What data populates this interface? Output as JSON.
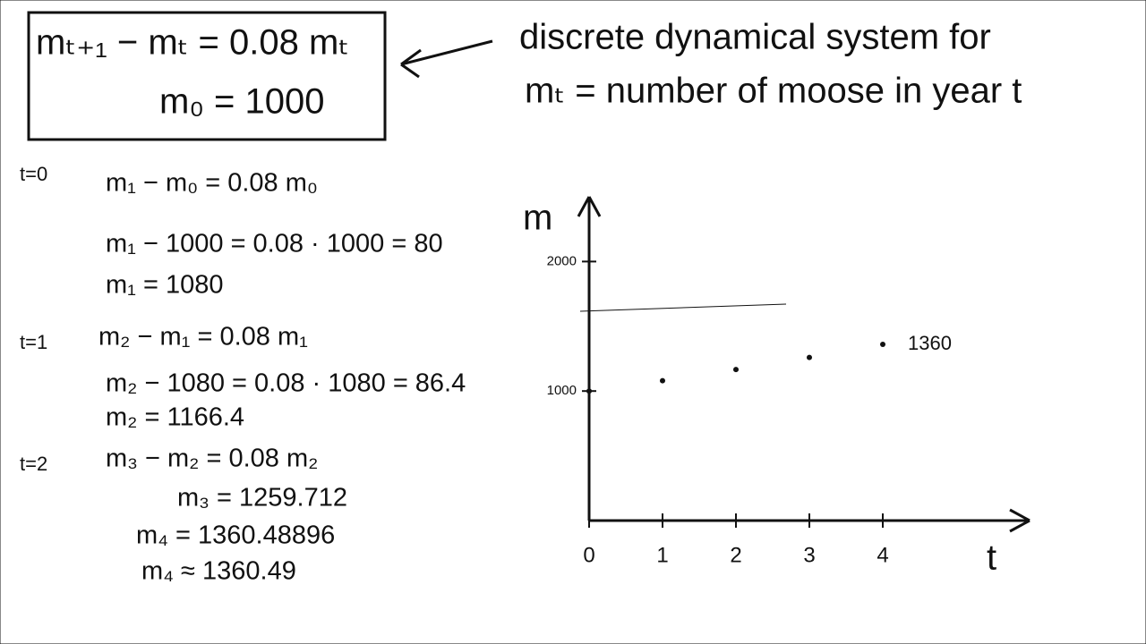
{
  "box": {
    "equation": "mₜ₊₁ − mₜ = 0.08 mₜ",
    "initial": "m₀ = 1000"
  },
  "annotation": {
    "line1": "discrete dynamical system for",
    "line2": "mₜ = number of moose in year t"
  },
  "steps": [
    {
      "label": "t=0",
      "lines": [
        "m₁ − m₀ = 0.08 m₀",
        "m₁ − 1000 = 0.08 · 1000 = 80",
        "m₁ = 1080"
      ]
    },
    {
      "label": "t=1",
      "lines": [
        "m₂ − m₁ = 0.08 m₁",
        "m₂ − 1080 = 0.08 · 1080 = 86.4",
        "m₂ = 1166.4"
      ]
    },
    {
      "label": "t=2",
      "lines": [
        "m₃ − m₂ = 0.08 m₂",
        "m₃ = 1259.712",
        "m₄ = 1360.48896",
        "m₄ ≈ 1360.49"
      ]
    }
  ],
  "graph": {
    "x_label": "t",
    "y_label": "m",
    "xlim": [
      0,
      6
    ],
    "ylim": [
      0,
      2500
    ],
    "xticks": [
      0,
      1,
      2,
      3,
      4
    ],
    "yticks": [
      1000,
      2000
    ],
    "x": [
      0,
      1,
      2,
      3,
      4
    ],
    "values": [
      1000,
      1080,
      1166.4,
      1259.712,
      1360.49
    ],
    "point_note": "1360"
  }
}
